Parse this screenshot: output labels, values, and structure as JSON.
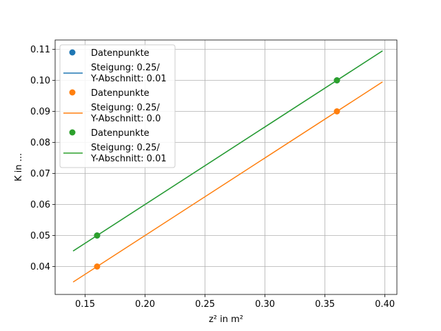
{
  "chart_data": {
    "type": "scatter",
    "title": "",
    "xlabel": "z² in m²",
    "ylabel": "K in ...",
    "xlim": [
      0.125,
      0.41
    ],
    "ylim": [
      0.031,
      0.113
    ],
    "xticks": [
      0.15,
      0.2,
      0.25,
      0.3,
      0.35,
      0.4
    ],
    "xtick_labels": [
      "0.15",
      "0.20",
      "0.25",
      "0.30",
      "0.35",
      "0.40"
    ],
    "yticks": [
      0.04,
      0.05,
      0.06,
      0.07,
      0.08,
      0.09,
      0.1,
      0.11
    ],
    "ytick_labels": [
      "0.04",
      "0.05",
      "0.06",
      "0.07",
      "0.08",
      "0.09",
      "0.10",
      "0.11"
    ],
    "grid": true,
    "legend_position": "upper-left",
    "series": [
      {
        "name": "Datenpunkte",
        "color": "#1f77b4",
        "points": [
          {
            "x": 0.16,
            "y": 0.05
          },
          {
            "x": 0.36,
            "y": 0.1
          }
        ],
        "fit_label_line1": "Steigung: 0.25/",
        "fit_label_line2": "Y-Abschnitt: 0.01",
        "fit": {
          "slope": 0.25,
          "intercept": 0.01,
          "x_start": 0.14,
          "x_end": 0.398
        }
      },
      {
        "name": "Datenpunkte",
        "color": "#ff7f0e",
        "points": [
          {
            "x": 0.16,
            "y": 0.04
          },
          {
            "x": 0.36,
            "y": 0.09
          }
        ],
        "fit_label_line1": "Steigung: 0.25/",
        "fit_label_line2": "Y-Abschnitt: 0.0",
        "fit": {
          "slope": 0.25,
          "intercept": 0.0,
          "x_start": 0.14,
          "x_end": 0.398
        }
      },
      {
        "name": "Datenpunkte",
        "color": "#2ca02c",
        "points": [
          {
            "x": 0.16,
            "y": 0.05
          },
          {
            "x": 0.36,
            "y": 0.1
          }
        ],
        "fit_label_line1": "Steigung: 0.25/",
        "fit_label_line2": "Y-Abschnitt: 0.01",
        "fit": {
          "slope": 0.25,
          "intercept": 0.01,
          "x_start": 0.14,
          "x_end": 0.398
        }
      }
    ]
  }
}
